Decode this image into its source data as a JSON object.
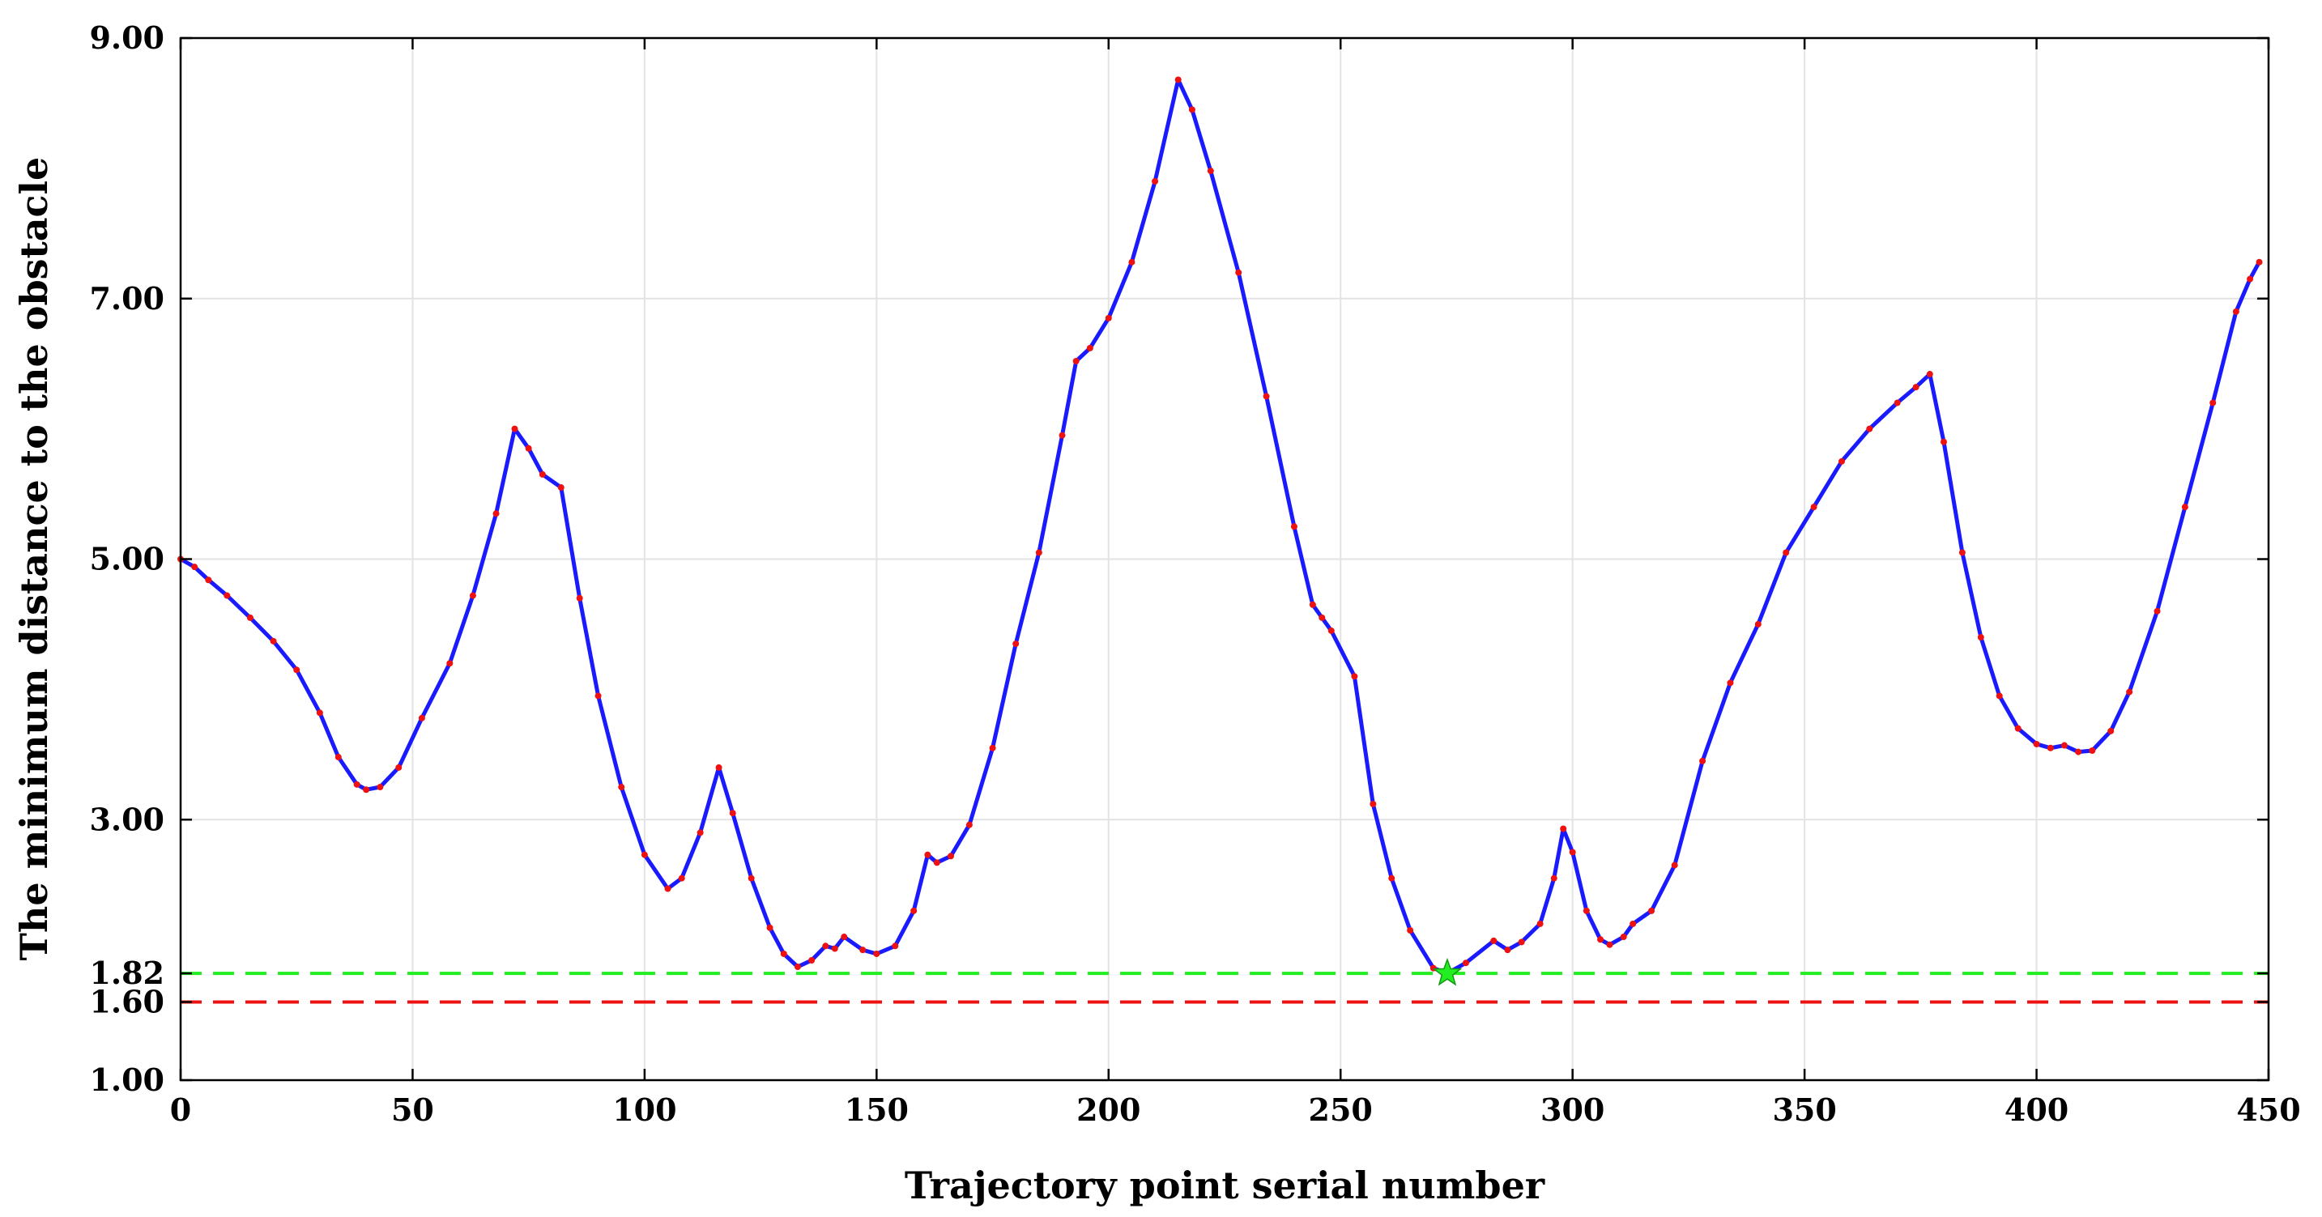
{
  "chart_data": {
    "type": "line",
    "title": "",
    "xlabel": "Trajectory point serial number",
    "ylabel": "The minimum distance to the obstacle",
    "xlim": [
      0,
      450
    ],
    "ylim": [
      1.0,
      9.0
    ],
    "grid": true,
    "x_ticks": [
      {
        "value": 0,
        "label": "0"
      },
      {
        "value": 50,
        "label": "50"
      },
      {
        "value": 100,
        "label": "100"
      },
      {
        "value": 150,
        "label": "150"
      },
      {
        "value": 200,
        "label": "200"
      },
      {
        "value": 250,
        "label": "250"
      },
      {
        "value": 300,
        "label": "300"
      },
      {
        "value": 350,
        "label": "350"
      },
      {
        "value": 400,
        "label": "400"
      },
      {
        "value": 450,
        "label": "450"
      }
    ],
    "y_ticks": [
      {
        "value": 1.0,
        "label": "1.00"
      },
      {
        "value": 1.6,
        "label": "1.60"
      },
      {
        "value": 1.82,
        "label": "1.82"
      },
      {
        "value": 3.0,
        "label": "3.00"
      },
      {
        "value": 5.0,
        "label": "5.00"
      },
      {
        "value": 7.0,
        "label": "7.00"
      },
      {
        "value": 9.0,
        "label": "9.00"
      }
    ],
    "colors": {
      "line": "#1a1aff",
      "markers": "#ee1111",
      "safety_threshold": "#ee1111",
      "minimum_line": "#22ee22",
      "minimum_marker": "#22ee22"
    },
    "reference_lines": [
      {
        "y": 1.82,
        "color": "#22ee22",
        "style": "dashed"
      },
      {
        "y": 1.6,
        "color": "#ee1111",
        "style": "dashed"
      }
    ],
    "minimum_point": {
      "x": 273,
      "y": 1.82
    },
    "series": [
      {
        "points": [
          [
            0,
            5.0
          ],
          [
            3,
            4.94
          ],
          [
            6,
            4.84
          ],
          [
            10,
            4.72
          ],
          [
            15,
            4.55
          ],
          [
            20,
            4.37
          ],
          [
            25,
            4.15
          ],
          [
            30,
            3.82
          ],
          [
            34,
            3.48
          ],
          [
            38,
            3.27
          ],
          [
            40,
            3.23
          ],
          [
            43,
            3.25
          ],
          [
            47,
            3.4
          ],
          [
            52,
            3.78
          ],
          [
            58,
            4.2
          ],
          [
            63,
            4.72
          ],
          [
            68,
            5.35
          ],
          [
            72,
            6.0
          ],
          [
            75,
            5.85
          ],
          [
            78,
            5.65
          ],
          [
            82,
            5.55
          ],
          [
            86,
            4.7
          ],
          [
            90,
            3.95
          ],
          [
            95,
            3.25
          ],
          [
            100,
            2.73
          ],
          [
            105,
            2.47
          ],
          [
            108,
            2.55
          ],
          [
            112,
            2.9
          ],
          [
            116,
            3.4
          ],
          [
            119,
            3.05
          ],
          [
            123,
            2.55
          ],
          [
            127,
            2.17
          ],
          [
            130,
            1.97
          ],
          [
            133,
            1.87
          ],
          [
            136,
            1.92
          ],
          [
            139,
            2.03
          ],
          [
            141,
            2.01
          ],
          [
            143,
            2.1
          ],
          [
            147,
            2.0
          ],
          [
            150,
            1.97
          ],
          [
            154,
            2.03
          ],
          [
            158,
            2.3
          ],
          [
            161,
            2.73
          ],
          [
            163,
            2.67
          ],
          [
            166,
            2.72
          ],
          [
            170,
            2.96
          ],
          [
            175,
            3.55
          ],
          [
            180,
            4.35
          ],
          [
            185,
            5.05
          ],
          [
            190,
            5.95
          ],
          [
            193,
            6.52
          ],
          [
            196,
            6.62
          ],
          [
            200,
            6.85
          ],
          [
            205,
            7.28
          ],
          [
            210,
            7.9
          ],
          [
            215,
            8.68
          ],
          [
            218,
            8.45
          ],
          [
            222,
            7.98
          ],
          [
            228,
            7.2
          ],
          [
            234,
            6.25
          ],
          [
            240,
            5.25
          ],
          [
            244,
            4.65
          ],
          [
            246,
            4.55
          ],
          [
            248,
            4.45
          ],
          [
            253,
            4.1
          ],
          [
            257,
            3.12
          ],
          [
            261,
            2.55
          ],
          [
            265,
            2.15
          ],
          [
            270,
            1.86
          ],
          [
            273,
            1.82
          ],
          [
            277,
            1.9
          ],
          [
            283,
            2.07
          ],
          [
            286,
            2.0
          ],
          [
            289,
            2.06
          ],
          [
            293,
            2.2
          ],
          [
            296,
            2.55
          ],
          [
            298,
            2.93
          ],
          [
            300,
            2.75
          ],
          [
            303,
            2.3
          ],
          [
            306,
            2.08
          ],
          [
            308,
            2.04
          ],
          [
            311,
            2.1
          ],
          [
            313,
            2.2
          ],
          [
            317,
            2.3
          ],
          [
            322,
            2.65
          ],
          [
            328,
            3.45
          ],
          [
            334,
            4.05
          ],
          [
            340,
            4.5
          ],
          [
            346,
            5.05
          ],
          [
            352,
            5.4
          ],
          [
            358,
            5.75
          ],
          [
            364,
            6.0
          ],
          [
            370,
            6.2
          ],
          [
            374,
            6.32
          ],
          [
            377,
            6.42
          ],
          [
            380,
            5.9
          ],
          [
            384,
            5.05
          ],
          [
            388,
            4.4
          ],
          [
            392,
            3.95
          ],
          [
            396,
            3.7
          ],
          [
            400,
            3.58
          ],
          [
            403,
            3.55
          ],
          [
            406,
            3.57
          ],
          [
            409,
            3.52
          ],
          [
            412,
            3.53
          ],
          [
            416,
            3.68
          ],
          [
            420,
            3.98
          ],
          [
            426,
            4.6
          ],
          [
            432,
            5.4
          ],
          [
            438,
            6.2
          ],
          [
            443,
            6.9
          ],
          [
            446,
            7.15
          ],
          [
            448,
            7.28
          ]
        ]
      }
    ]
  }
}
